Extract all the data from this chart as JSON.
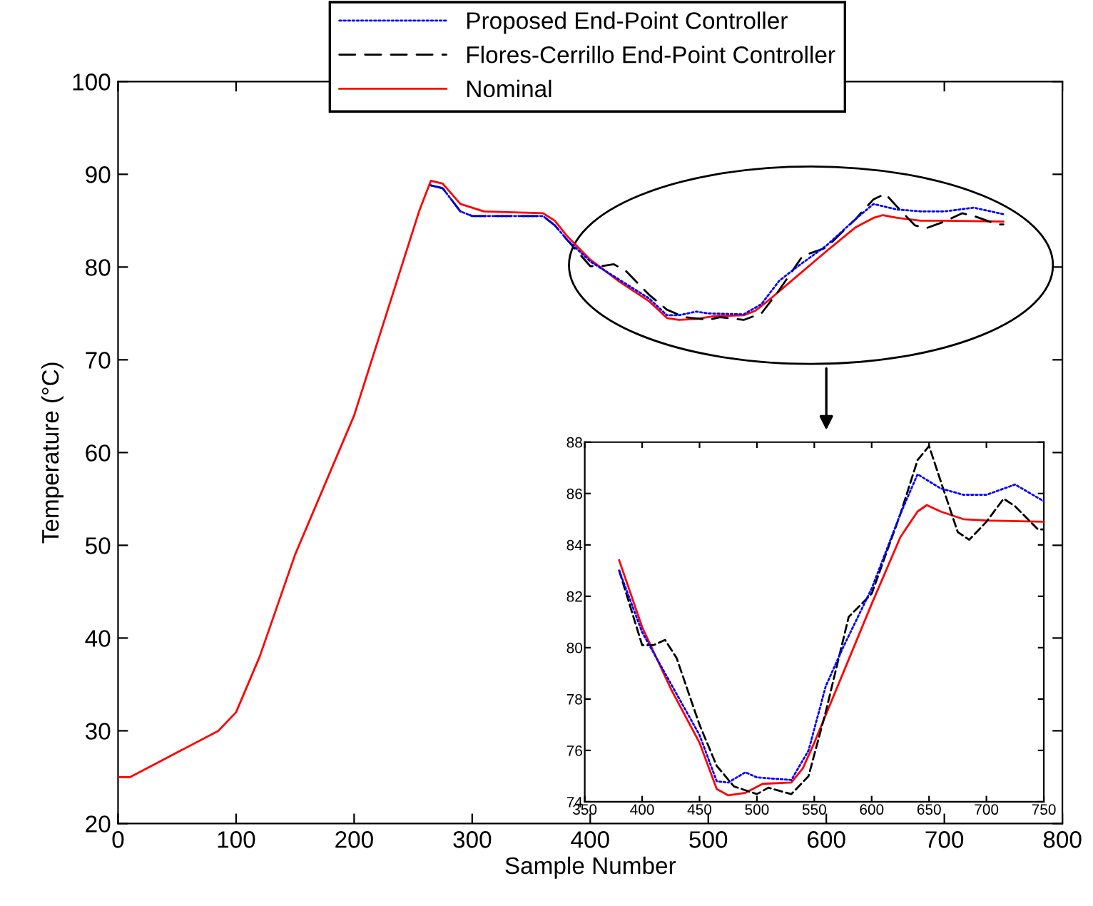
{
  "chart_data": [
    {
      "type": "line",
      "xlabel": "Sample Number",
      "ylabel": "Temperature (°C)",
      "xlim": [
        0,
        800
      ],
      "ylim": [
        20,
        100
      ],
      "xticks": [
        0,
        100,
        200,
        300,
        400,
        500,
        600,
        700,
        800
      ],
      "yticks": [
        20,
        30,
        40,
        50,
        60,
        70,
        80,
        90,
        100
      ],
      "grid": false,
      "legend": "top",
      "marker": "none",
      "series": [
        {
          "name": "Proposed End-Point Controller",
          "color": "#0000ff",
          "line_style": "dotted",
          "x": [
            265,
            275,
            290,
            300,
            360,
            370,
            380,
            400,
            425,
            450,
            465,
            475,
            490,
            500,
            530,
            545,
            560,
            575,
            600,
            625,
            640,
            660,
            680,
            700,
            725,
            750
          ],
          "values": [
            88.8,
            88.5,
            86,
            85.5,
            85.5,
            84.5,
            83.0,
            80.6,
            78.6,
            76.6,
            74.8,
            74.8,
            75.2,
            75.0,
            74.9,
            76,
            78.5,
            80,
            82.3,
            85.2,
            86.8,
            86.2,
            86.0,
            86.0,
            86.4,
            85.7
          ]
        },
        {
          "name": "Flores-Cerrillo End-Point Controller",
          "color": "#000000",
          "line_style": "dashed",
          "x": [
            265,
            275,
            290,
            300,
            360,
            370,
            380,
            400,
            410,
            420,
            430,
            450,
            465,
            480,
            500,
            510,
            530,
            545,
            560,
            580,
            600,
            625,
            640,
            650,
            660,
            675,
            685,
            700,
            715,
            725,
            745,
            750
          ],
          "values": [
            88.8,
            88.5,
            86,
            85.5,
            85.5,
            84.5,
            83.0,
            80.1,
            80.1,
            80.3,
            79.6,
            77.0,
            75.4,
            74.6,
            74.3,
            74.6,
            74.3,
            75,
            77.5,
            81.2,
            82.1,
            85.2,
            87.3,
            87.9,
            86.5,
            84.5,
            84.2,
            84.9,
            85.8,
            85.5,
            84.6,
            84.6
          ]
        },
        {
          "name": "Nominal",
          "color": "#ff0000",
          "line_style": "solid",
          "x": [
            0,
            10,
            40,
            85,
            100,
            120,
            150,
            180,
            200,
            220,
            240,
            255,
            265,
            275,
            290,
            310,
            360,
            370,
            380,
            400,
            425,
            450,
            465,
            475,
            490,
            505,
            530,
            540,
            550,
            575,
            600,
            625,
            640,
            648,
            660,
            680,
            700,
            750
          ],
          "values": [
            25,
            25,
            27,
            30,
            32,
            38,
            49,
            58,
            64,
            72,
            80,
            86,
            89.3,
            89,
            86.8,
            86,
            85.8,
            85,
            83.4,
            80.8,
            78.4,
            76.3,
            74.5,
            74.3,
            74.4,
            74.7,
            74.8,
            75.3,
            76.3,
            79,
            81.7,
            84.3,
            85.3,
            85.6,
            85.3,
            85.0,
            85.0,
            84.9
          ]
        }
      ]
    },
    {
      "type": "line",
      "xlim": [
        350,
        750
      ],
      "ylim": [
        74,
        88
      ],
      "xticks": [
        350,
        400,
        450,
        500,
        550,
        600,
        650,
        700,
        750
      ],
      "yticks": [
        74,
        76,
        78,
        80,
        82,
        84,
        86,
        88
      ],
      "grid": false,
      "legend": false,
      "marker": "none",
      "series": [
        {
          "color": "#0000ff",
          "line_style": "dotted",
          "x": [
            380,
            400,
            425,
            450,
            465,
            475,
            490,
            500,
            530,
            545,
            560,
            575,
            600,
            625,
            640,
            660,
            680,
            700,
            725,
            750
          ],
          "values": [
            83.0,
            80.6,
            78.6,
            76.6,
            74.8,
            74.75,
            75.15,
            74.95,
            74.85,
            76,
            78.5,
            80,
            82.3,
            85.2,
            86.75,
            86.2,
            85.95,
            85.95,
            86.35,
            85.7
          ]
        },
        {
          "color": "#000000",
          "line_style": "dashed",
          "x": [
            380,
            400,
            410,
            420,
            430,
            450,
            465,
            480,
            500,
            510,
            530,
            545,
            560,
            580,
            600,
            625,
            640,
            650,
            660,
            675,
            685,
            700,
            715,
            725,
            745,
            750
          ],
          "values": [
            83.0,
            80.1,
            80.1,
            80.3,
            79.6,
            77.0,
            75.4,
            74.6,
            74.3,
            74.55,
            74.3,
            75,
            77.5,
            81.2,
            82.1,
            85.2,
            87.3,
            87.85,
            86.5,
            84.5,
            84.2,
            84.9,
            85.8,
            85.5,
            84.6,
            84.6
          ]
        },
        {
          "color": "#ff0000",
          "line_style": "solid",
          "x": [
            380,
            400,
            425,
            450,
            465,
            475,
            490,
            505,
            530,
            540,
            550,
            575,
            600,
            625,
            640,
            648,
            660,
            680,
            700,
            750
          ],
          "values": [
            83.4,
            80.8,
            78.4,
            76.3,
            74.5,
            74.25,
            74.35,
            74.7,
            74.75,
            75.3,
            76.3,
            79,
            81.7,
            84.3,
            85.3,
            85.55,
            85.3,
            85.0,
            84.95,
            84.9
          ]
        }
      ]
    }
  ]
}
